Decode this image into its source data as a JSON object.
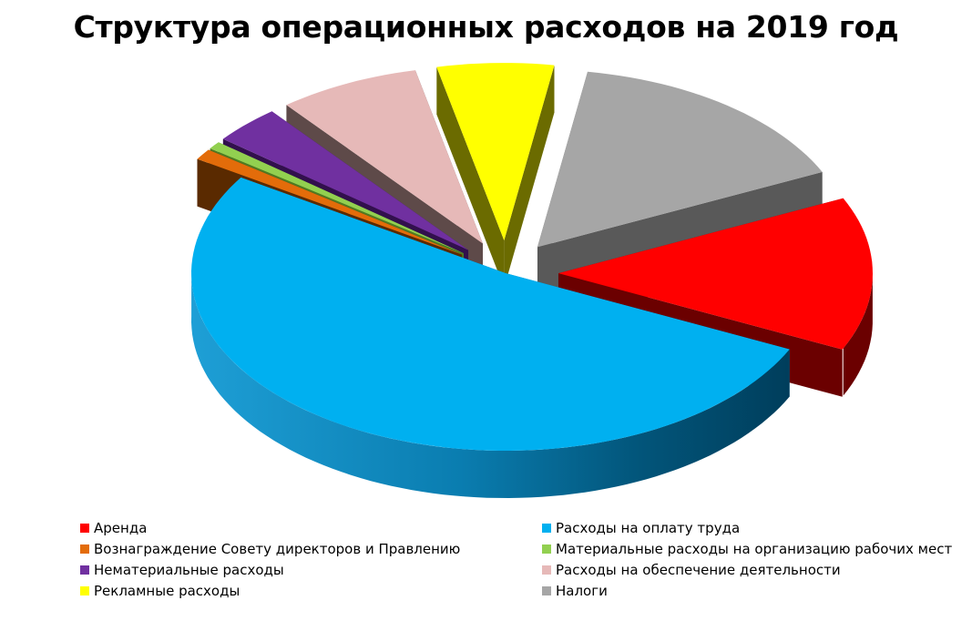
{
  "chart_data": {
    "type": "pie",
    "title": "Структура операционных расходов на 2019 год",
    "exploded": true,
    "three_d": true,
    "legend_position": "bottom",
    "slices": [
      {
        "label": "Аренда",
        "value": 14.0,
        "color": "#FF0000",
        "side": "#6B0000"
      },
      {
        "label": "Расходы на оплату труда",
        "value": 52.0,
        "color": "#00B0F0",
        "side": "#0077A8"
      },
      {
        "label": "Вознаграждение Совету директоров и Правлению",
        "value": 1.0,
        "color": "#E36C0A",
        "side": "#5A2A00"
      },
      {
        "label": "Материальные расходы на организацию рабочих мест",
        "value": 0.7,
        "color": "#92D050",
        "side": "#4F7A22"
      },
      {
        "label": "Нематериальные расходы",
        "value": 3.5,
        "color": "#7030A0",
        "side": "#32104D"
      },
      {
        "label": "Расходы на обеспечение деятельности",
        "value": 7.3,
        "color": "#E6B9B8",
        "side": "#5E4A49"
      },
      {
        "label": "Рекламные расходы",
        "value": 6.0,
        "color": "#FFFF00",
        "side": "#6B6B00"
      },
      {
        "label": "Налоги",
        "value": 15.5,
        "color": "#A6A6A6",
        "side": "#595959"
      }
    ]
  }
}
